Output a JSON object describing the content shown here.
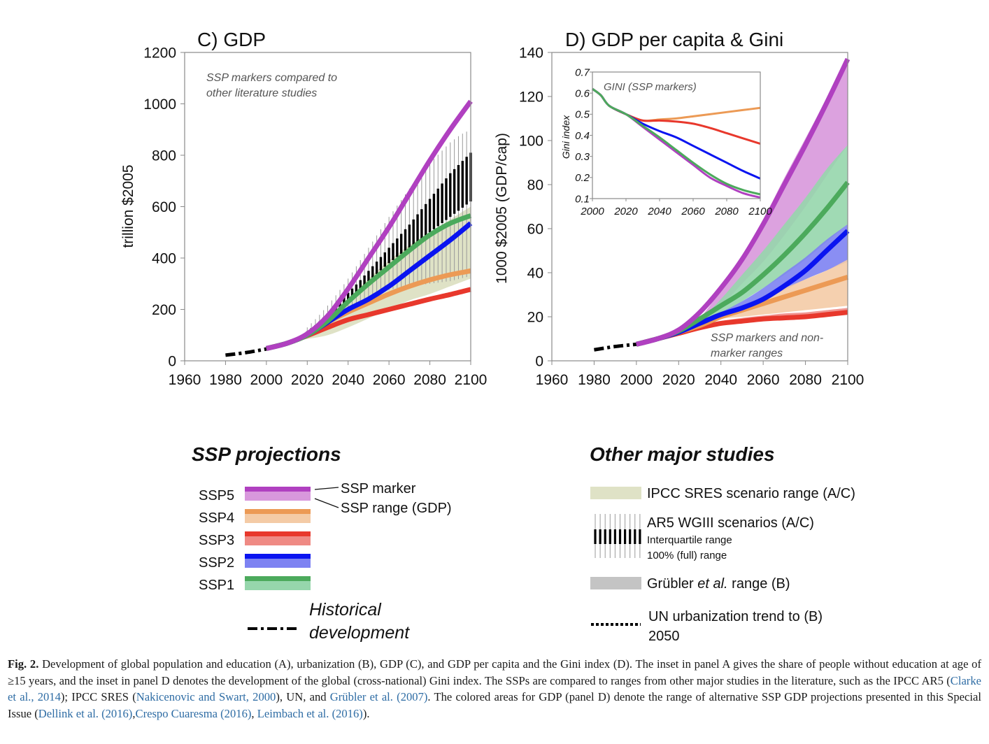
{
  "figure": {
    "caption_label": "Fig. 2.",
    "caption_parts": [
      {
        "text": " Development of global population and education (A), urbanization (B), GDP (C), and GDP per capita and the Gini index (D). The inset in panel A gives the share of people without education at age of ≥15 years, and the inset in panel D denotes the development of the global (cross-national) Gini index. The SSPs are compared to ranges from other major studies in the literature, such as the IPCC AR5 (",
        "ref": false
      },
      {
        "text": "Clarke et al., 2014",
        "ref": true
      },
      {
        "text": "); IPCC SRES (",
        "ref": false
      },
      {
        "text": "Nakicenovic and Swart, 2000",
        "ref": true
      },
      {
        "text": "), UN, and ",
        "ref": false
      },
      {
        "text": "Grübler et al. (2007)",
        "ref": true
      },
      {
        "text": ". The colored areas for GDP (panel D) denote the range of alternative SSP GDP projections presented in this Special Issue (",
        "ref": false
      },
      {
        "text": "Dellink et al. (2016)",
        "ref": true
      },
      {
        "text": ",",
        "ref": false
      },
      {
        "text": "Crespo Cuaresma (2016)",
        "ref": true
      },
      {
        "text": ", ",
        "ref": false
      },
      {
        "text": "Leimbach et al. (2016)",
        "ref": true
      },
      {
        "text": ").",
        "ref": false
      }
    ]
  },
  "colors": {
    "SSP5": "#b040c0",
    "SSP5_range": "#d898dc",
    "SSP4": "#ec9a55",
    "SSP4_range": "#f4cba6",
    "SSP3": "#e8382c",
    "SSP3_range": "#ef8a84",
    "SSP2": "#0a14f0",
    "SSP2_range": "#7d82f2",
    "SSP1": "#4caa5c",
    "SSP1_range": "#96d6ac",
    "sres": "#dfe2c6",
    "grubler": "#c4c4c4",
    "historical": "#000000"
  },
  "chart_data": [
    {
      "id": "panelC",
      "type": "line",
      "title": "C) GDP",
      "annotation": [
        "SSP markers compared to",
        "other literature studies"
      ],
      "xlabel": "",
      "ylabel": "trillion $2005",
      "xlim": [
        1960,
        2100
      ],
      "ylim": [
        0,
        1200
      ],
      "xticks": [
        1960,
        1980,
        2000,
        2020,
        2040,
        2060,
        2080,
        2100
      ],
      "yticks": [
        0,
        200,
        400,
        600,
        800,
        1000,
        1200
      ],
      "historical": {
        "x": [
          1980,
          1990,
          2000
        ],
        "y": [
          22,
          32,
          46
        ]
      },
      "series": [
        {
          "name": "SSP5",
          "x": [
            2000,
            2010,
            2020,
            2030,
            2040,
            2050,
            2060,
            2070,
            2080,
            2090,
            2100
          ],
          "y": [
            48,
            68,
            105,
            175,
            280,
            400,
            520,
            650,
            780,
            900,
            1010
          ]
        },
        {
          "name": "SSP1",
          "x": [
            2000,
            2010,
            2020,
            2030,
            2040,
            2050,
            2060,
            2070,
            2080,
            2090,
            2100
          ],
          "y": [
            48,
            68,
            100,
            155,
            230,
            300,
            365,
            430,
            490,
            535,
            565
          ]
        },
        {
          "name": "SSP2",
          "x": [
            2000,
            2010,
            2020,
            2030,
            2040,
            2050,
            2060,
            2070,
            2080,
            2090,
            2100
          ],
          "y": [
            48,
            68,
            100,
            150,
            200,
            240,
            290,
            350,
            410,
            470,
            535
          ]
        },
        {
          "name": "SSP4",
          "x": [
            2000,
            2010,
            2020,
            2030,
            2040,
            2050,
            2060,
            2070,
            2080,
            2090,
            2100
          ],
          "y": [
            48,
            68,
            100,
            150,
            190,
            225,
            260,
            290,
            315,
            335,
            350
          ]
        },
        {
          "name": "SSP3",
          "x": [
            2000,
            2010,
            2020,
            2030,
            2040,
            2050,
            2060,
            2070,
            2080,
            2090,
            2100
          ],
          "y": [
            48,
            68,
            98,
            130,
            160,
            180,
            200,
            220,
            240,
            258,
            278
          ]
        }
      ],
      "sres_range": {
        "x": [
          2015,
          2020,
          2030,
          2040,
          2050,
          2060,
          2070,
          2080,
          2090,
          2100
        ],
        "low": [
          80,
          85,
          100,
          130,
          165,
          200,
          235,
          260,
          290,
          320
        ],
        "high": [
          85,
          110,
          170,
          240,
          320,
          390,
          450,
          500,
          550,
          600
        ]
      },
      "ar5_bars": {
        "x": [
          2020,
          2025,
          2030,
          2035,
          2040,
          2045,
          2050,
          2055,
          2060,
          2065,
          2070,
          2075,
          2080,
          2085,
          2090,
          2095,
          2100
        ],
        "iqr_low": [
          105,
          130,
          165,
          200,
          235,
          270,
          310,
          345,
          380,
          410,
          440,
          470,
          500,
          530,
          560,
          590,
          620
        ],
        "iqr_high": [
          115,
          145,
          185,
          225,
          265,
          305,
          350,
          395,
          440,
          485,
          530,
          580,
          630,
          680,
          730,
          770,
          810
        ],
        "full_low": [
          90,
          110,
          140,
          165,
          195,
          220,
          245,
          260,
          275,
          285,
          290,
          295,
          300,
          305,
          310,
          320,
          330
        ],
        "full_high": [
          130,
          170,
          215,
          265,
          320,
          380,
          440,
          500,
          560,
          615,
          670,
          720,
          770,
          810,
          850,
          880,
          900
        ]
      }
    },
    {
      "id": "panelD",
      "type": "line",
      "title": "D) GDP per capita & Gini",
      "annotation": [
        "SSP markers and  non-",
        "marker ranges"
      ],
      "xlabel": "",
      "ylabel": "1000 $2005 (GDP/cap)",
      "xlim": [
        1960,
        2100
      ],
      "ylim": [
        0,
        140
      ],
      "xticks": [
        1960,
        1980,
        2000,
        2020,
        2040,
        2060,
        2080,
        2100
      ],
      "yticks": [
        0,
        20,
        40,
        60,
        80,
        100,
        120,
        140
      ],
      "historical": {
        "x": [
          1980,
          1990,
          2000
        ],
        "y": [
          5,
          6.5,
          7.5
        ]
      },
      "ranges": [
        {
          "name": "SSP5",
          "x": [
            2030,
            2040,
            2050,
            2060,
            2070,
            2080,
            2090,
            2100
          ],
          "low": [
            18,
            25,
            35,
            45,
            57,
            70,
            84,
            98
          ],
          "high": [
            19,
            32,
            47,
            64,
            83,
            101,
            119,
            137
          ]
        },
        {
          "name": "SSP1",
          "x": [
            2030,
            2040,
            2050,
            2060,
            2070,
            2080,
            2090,
            2100
          ],
          "low": [
            17,
            21,
            27,
            33,
            39,
            46,
            54,
            62
          ],
          "high": [
            18,
            28,
            39,
            50,
            62,
            74,
            87,
            98
          ]
        },
        {
          "name": "SSP2",
          "x": [
            2030,
            2040,
            2050,
            2060,
            2070,
            2080,
            2090,
            2100
          ],
          "low": [
            17,
            21,
            25,
            28,
            32,
            37,
            41,
            45
          ],
          "high": [
            17,
            22,
            27,
            33,
            40,
            47,
            55,
            62
          ]
        },
        {
          "name": "SSP4",
          "x": [
            2030,
            2040,
            2050,
            2060,
            2070,
            2080,
            2090,
            2100
          ],
          "low": [
            16,
            19,
            20,
            21,
            22,
            23,
            24,
            25
          ],
          "high": [
            17,
            21,
            25,
            29,
            33,
            37,
            41,
            46
          ]
        },
        {
          "name": "SSP3",
          "x": [
            2030,
            2040,
            2050,
            2060,
            2070,
            2080,
            2090,
            2100
          ],
          "low": [
            15,
            17,
            18,
            18.5,
            19,
            20,
            20.5,
            21
          ],
          "high": [
            16,
            18,
            19.5,
            20.5,
            21.5,
            22,
            23,
            24
          ]
        }
      ],
      "series": [
        {
          "name": "SSP5",
          "x": [
            2000,
            2010,
            2020,
            2030,
            2040,
            2050,
            2060,
            2070,
            2080,
            2090,
            2100
          ],
          "y": [
            7.5,
            10,
            14,
            22,
            33,
            46,
            62,
            80,
            98,
            117,
            137
          ]
        },
        {
          "name": "SSP1",
          "x": [
            2000,
            2010,
            2020,
            2030,
            2040,
            2050,
            2060,
            2070,
            2080,
            2090,
            2100
          ],
          "y": [
            7.5,
            10,
            13.5,
            19,
            25,
            31,
            39,
            48,
            58,
            69,
            81
          ]
        },
        {
          "name": "SSP2",
          "x": [
            2000,
            2010,
            2020,
            2030,
            2040,
            2050,
            2060,
            2070,
            2080,
            2090,
            2100
          ],
          "y": [
            7.5,
            10,
            13,
            17,
            21,
            24,
            28,
            34,
            41,
            50,
            59
          ]
        },
        {
          "name": "SSP4",
          "x": [
            2000,
            2010,
            2020,
            2030,
            2040,
            2050,
            2060,
            2070,
            2080,
            2090,
            2100
          ],
          "y": [
            7.5,
            10,
            13,
            16,
            20,
            23,
            26,
            29,
            32,
            35,
            38
          ]
        },
        {
          "name": "SSP3",
          "x": [
            2000,
            2010,
            2020,
            2030,
            2040,
            2050,
            2060,
            2070,
            2080,
            2090,
            2100
          ],
          "y": [
            7.5,
            10,
            12.5,
            15,
            17,
            18,
            19,
            19.5,
            20,
            21,
            22
          ]
        }
      ]
    },
    {
      "id": "giniInset",
      "type": "line",
      "title": "GINI (SSP markers)",
      "xlabel": "",
      "ylabel": "Gini index",
      "xlim": [
        2000,
        2100
      ],
      "ylim": [
        0.1,
        0.7
      ],
      "xticks": [
        2000,
        2020,
        2040,
        2060,
        2080,
        2100
      ],
      "yticks": [
        0.1,
        0.2,
        0.3,
        0.4,
        0.5,
        0.6,
        0.7
      ],
      "series": [
        {
          "name": "SSP4",
          "x": [
            2000,
            2005,
            2010,
            2020,
            2030,
            2040,
            2050,
            2060,
            2070,
            2080,
            2090,
            2100
          ],
          "y": [
            0.62,
            0.59,
            0.54,
            0.5,
            0.47,
            0.475,
            0.48,
            0.49,
            0.5,
            0.51,
            0.52,
            0.53
          ]
        },
        {
          "name": "SSP3",
          "x": [
            2000,
            2005,
            2010,
            2020,
            2030,
            2040,
            2050,
            2060,
            2070,
            2080,
            2090,
            2100
          ],
          "y": [
            0.62,
            0.59,
            0.54,
            0.5,
            0.47,
            0.47,
            0.465,
            0.455,
            0.435,
            0.41,
            0.385,
            0.36
          ]
        },
        {
          "name": "SSP2",
          "x": [
            2000,
            2005,
            2010,
            2020,
            2030,
            2040,
            2050,
            2060,
            2070,
            2080,
            2090,
            2100
          ],
          "y": [
            0.62,
            0.59,
            0.54,
            0.5,
            0.455,
            0.42,
            0.39,
            0.35,
            0.31,
            0.27,
            0.23,
            0.195
          ]
        },
        {
          "name": "SSP5",
          "x": [
            2000,
            2005,
            2010,
            2020,
            2030,
            2040,
            2050,
            2060,
            2070,
            2080,
            2090,
            2100
          ],
          "y": [
            0.62,
            0.59,
            0.54,
            0.5,
            0.44,
            0.38,
            0.32,
            0.26,
            0.2,
            0.16,
            0.125,
            0.105
          ]
        },
        {
          "name": "SSP1",
          "x": [
            2000,
            2005,
            2010,
            2020,
            2030,
            2040,
            2050,
            2060,
            2070,
            2080,
            2090,
            2100
          ],
          "y": [
            0.62,
            0.59,
            0.54,
            0.5,
            0.445,
            0.39,
            0.33,
            0.27,
            0.215,
            0.17,
            0.14,
            0.12
          ]
        }
      ]
    }
  ],
  "legend_ssp": {
    "title": "SSP projections",
    "items": [
      {
        "label": "SSP5",
        "key": "SSP5"
      },
      {
        "label": "SSP4",
        "key": "SSP4"
      },
      {
        "label": "SSP3",
        "key": "SSP3"
      },
      {
        "label": "SSP2",
        "key": "SSP2"
      },
      {
        "label": "SSP1",
        "key": "SSP1"
      }
    ],
    "marker_label": "SSP marker",
    "range_label": "SSP range (GDP)",
    "historical_label": [
      "Historical",
      "development"
    ]
  },
  "legend_other": {
    "title": "Other major studies",
    "sres_label": "IPCC SRES scenario range (A/C)",
    "ar5_label": "AR5 WGIII scenarios (A/C)",
    "ar5_iqr_label": "Interquartile  range",
    "ar5_full_label": "100% (full) range",
    "grubler_label_pre": "Grübler ",
    "grubler_label_it": "et al.",
    "grubler_label_post": " range (B)",
    "un_label": [
      "UN urbanization trend to (B)",
      "2050"
    ]
  }
}
